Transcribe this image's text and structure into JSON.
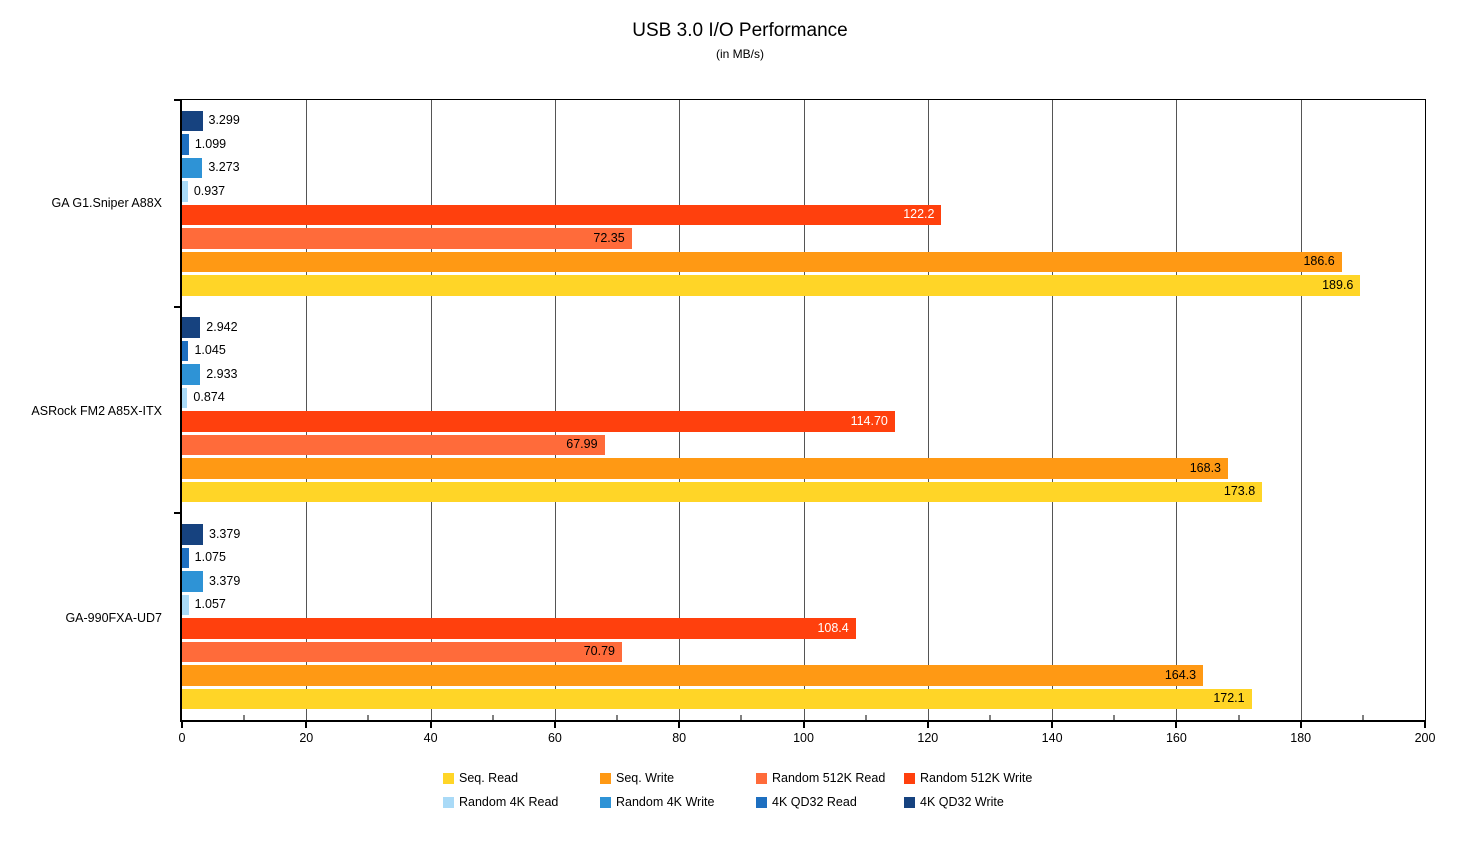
{
  "chart_data": {
    "type": "bar",
    "orientation": "horizontal",
    "title": "USB 3.0 I/O Performance",
    "subtitle": "(in MB/s)",
    "axis": {
      "min": 0,
      "max": 200,
      "major_step": 20,
      "minor_step": 10,
      "tick_labels": [
        "0",
        "20",
        "40",
        "60",
        "80",
        "100",
        "120",
        "140",
        "160",
        "180",
        "200"
      ]
    },
    "grid": true,
    "legend_position": "bottom",
    "categories": [
      "GA G1.Sniper A88X",
      "ASRock FM2 A85X-ITX",
      "GA-990FXA-UD7"
    ],
    "series": [
      {
        "name": "Seq. Read",
        "color": "#FFD527",
        "values": [
          189.6,
          173.8,
          172.1
        ]
      },
      {
        "name": "Seq. Write",
        "color": "#FF9914",
        "values": [
          186.6,
          168.3,
          164.3
        ]
      },
      {
        "name": "Random 512K Read",
        "color": "#FF6B3A",
        "values": [
          72.35,
          67.99,
          70.79
        ]
      },
      {
        "name": "Random 512K Write",
        "color": "#FF400D",
        "values": [
          122.2,
          114.7,
          108.4
        ]
      },
      {
        "name": "Random 4K Read",
        "color": "#A9DAF7",
        "values": [
          0.937,
          0.874,
          1.057
        ]
      },
      {
        "name": "Random 4K Write",
        "color": "#2E93D6",
        "values": [
          3.273,
          2.933,
          3.379
        ]
      },
      {
        "name": "4K QD32 Read",
        "color": "#1E6FC0",
        "values": [
          1.099,
          1.045,
          1.075
        ]
      },
      {
        "name": "4K QD32 Write",
        "color": "#16427F",
        "values": [
          3.299,
          2.942,
          3.379
        ]
      }
    ],
    "bar_order_top_to_bottom": [
      "4K QD32 Write",
      "4K QD32 Read",
      "Random 4K Write",
      "Random 4K Read",
      "Random 512K Write",
      "Random 512K Read",
      "Seq. Write",
      "Seq. Read"
    ],
    "groups": [
      {
        "category": "GA G1.Sniper A88X",
        "bars": [
          {
            "series": "4K QD32 Write",
            "value": 3.299,
            "label": "3.299",
            "label_pos": "outside"
          },
          {
            "series": "4K QD32 Read",
            "value": 1.099,
            "label": "1.099",
            "label_pos": "outside"
          },
          {
            "series": "Random 4K Write",
            "value": 3.273,
            "label": "3.273",
            "label_pos": "outside"
          },
          {
            "series": "Random 4K Read",
            "value": 0.937,
            "label": "0.937",
            "label_pos": "outside"
          },
          {
            "series": "Random 512K Write",
            "value": 122.2,
            "label": "122.2",
            "label_pos": "inside-white"
          },
          {
            "series": "Random 512K Read",
            "value": 72.35,
            "label": "72.35",
            "label_pos": "inside"
          },
          {
            "series": "Seq. Write",
            "value": 186.6,
            "label": "186.6",
            "label_pos": "inside"
          },
          {
            "series": "Seq. Read",
            "value": 189.6,
            "label": "189.6",
            "label_pos": "inside"
          }
        ]
      },
      {
        "category": "ASRock FM2 A85X-ITX",
        "bars": [
          {
            "series": "4K QD32 Write",
            "value": 2.942,
            "label": "2.942",
            "label_pos": "outside"
          },
          {
            "series": "4K QD32 Read",
            "value": 1.045,
            "label": "1.045",
            "label_pos": "outside"
          },
          {
            "series": "Random 4K Write",
            "value": 2.933,
            "label": "2.933",
            "label_pos": "outside"
          },
          {
            "series": "Random 4K Read",
            "value": 0.874,
            "label": "0.874",
            "label_pos": "outside"
          },
          {
            "series": "Random 512K Write",
            "value": 114.7,
            "label": "114.70",
            "label_pos": "inside-white"
          },
          {
            "series": "Random 512K Read",
            "value": 67.99,
            "label": "67.99",
            "label_pos": "inside"
          },
          {
            "series": "Seq. Write",
            "value": 168.3,
            "label": "168.3",
            "label_pos": "inside"
          },
          {
            "series": "Seq. Read",
            "value": 173.8,
            "label": "173.8",
            "label_pos": "inside"
          }
        ]
      },
      {
        "category": "GA-990FXA-UD7",
        "bars": [
          {
            "series": "4K QD32 Write",
            "value": 3.379,
            "label": "3.379",
            "label_pos": "outside"
          },
          {
            "series": "4K QD32 Read",
            "value": 1.075,
            "label": "1.075",
            "label_pos": "outside"
          },
          {
            "series": "Random 4K Write",
            "value": 3.379,
            "label": "3.379",
            "label_pos": "outside"
          },
          {
            "series": "Random 4K Read",
            "value": 1.057,
            "label": "1.057",
            "label_pos": "outside"
          },
          {
            "series": "Random 512K Write",
            "value": 108.4,
            "label": "108.4",
            "label_pos": "inside-white"
          },
          {
            "series": "Random 512K Read",
            "value": 70.79,
            "label": "70.79",
            "label_pos": "inside"
          },
          {
            "series": "Seq. Write",
            "value": 164.3,
            "label": "164.3",
            "label_pos": "inside"
          },
          {
            "series": "Seq. Read",
            "value": 172.1,
            "label": "172.1",
            "label_pos": "inside"
          }
        ]
      }
    ],
    "legend_rows": [
      [
        "Seq. Read",
        "Seq. Write",
        "Random 512K Read",
        "Random 512K Write"
      ],
      [
        "Random 4K Read",
        "Random 4K Write",
        "4K QD32 Read",
        "4K QD32 Write"
      ]
    ]
  }
}
